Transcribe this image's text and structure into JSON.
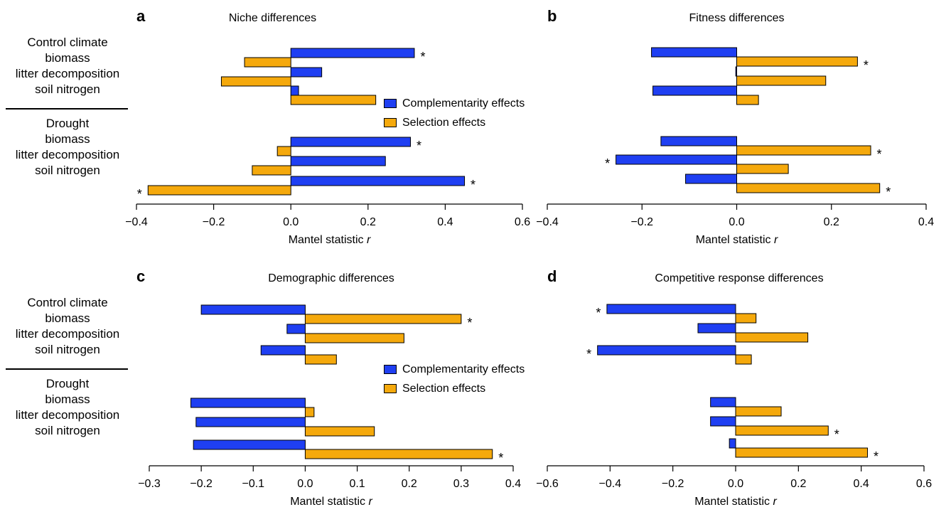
{
  "row_labels": [
    {
      "group": "Control climate",
      "items": [
        "biomass",
        "litter decomposition",
        "soil nitrogen"
      ]
    },
    {
      "group": "Drought",
      "items": [
        "biomass",
        "litter decomposition",
        "soil nitrogen"
      ]
    }
  ],
  "legend": {
    "complementarity": "Complementarity effects",
    "selection": "Selection effects"
  },
  "colors": {
    "complementarity": "#1f3ff2",
    "selection": "#f5a90c"
  },
  "chart_data": [
    {
      "type": "bar",
      "panel": "a",
      "title": "Niche differences",
      "xlabel": "Mantel statistic",
      "xlabel_italic": "r",
      "xlim": [
        -0.4,
        0.6
      ],
      "xticks": [
        "−0.4",
        "−0.2",
        "0.0",
        "0.2",
        "0.4",
        "0.6"
      ],
      "xtick_values": [
        -0.4,
        -0.2,
        0.0,
        0.2,
        0.4,
        0.6
      ],
      "categories": [
        "Control climate biomass",
        "Control climate litter decomposition",
        "Control climate soil nitrogen",
        "Drought biomass",
        "Drought litter decomposition",
        "Drought soil nitrogen"
      ],
      "series": [
        {
          "name": "Complementarity effects",
          "values": [
            0.32,
            0.08,
            0.02,
            0.31,
            0.245,
            0.45
          ],
          "significant": [
            true,
            false,
            false,
            true,
            false,
            true
          ]
        },
        {
          "name": "Selection effects",
          "values": [
            -0.12,
            -0.18,
            0.22,
            -0.035,
            -0.1,
            -0.37
          ],
          "significant": [
            false,
            false,
            false,
            false,
            false,
            true
          ]
        }
      ]
    },
    {
      "type": "bar",
      "panel": "b",
      "title": "Fitness differences",
      "xlabel": "Mantel statistic",
      "xlabel_italic": "r",
      "xlim": [
        -0.4,
        0.4
      ],
      "xticks": [
        "−0.4",
        "−0.2",
        "0.0",
        "0.2",
        "0.4"
      ],
      "xtick_values": [
        -0.4,
        -0.2,
        0.0,
        0.2,
        0.4
      ],
      "categories": [
        "Control climate biomass",
        "Control climate litter decomposition",
        "Control climate soil nitrogen",
        "Drought biomass",
        "Drought litter decomposition",
        "Drought soil nitrogen"
      ],
      "series": [
        {
          "name": "Complementarity effects",
          "values": [
            -0.18,
            -0.002,
            -0.177,
            -0.16,
            -0.255,
            -0.108
          ],
          "significant": [
            false,
            false,
            false,
            false,
            true,
            false
          ]
        },
        {
          "name": "Selection effects",
          "values": [
            0.255,
            0.188,
            0.046,
            0.283,
            0.109,
            0.302
          ],
          "significant": [
            true,
            false,
            false,
            true,
            false,
            true
          ]
        }
      ]
    },
    {
      "type": "bar",
      "panel": "c",
      "title": "Demographic differences",
      "xlabel": "Mantel statistic",
      "xlabel_italic": "r",
      "xlim": [
        -0.3,
        0.4
      ],
      "xticks": [
        "−0.3",
        "−0.2",
        "−0.1",
        "0.0",
        "0.1",
        "0.2",
        "0.3",
        "0.4"
      ],
      "xtick_values": [
        -0.3,
        -0.2,
        -0.1,
        0.0,
        0.1,
        0.2,
        0.3,
        0.4
      ],
      "categories": [
        "Control climate biomass",
        "Control climate litter decomposition",
        "Control climate soil nitrogen",
        "Drought biomass",
        "Drought litter decomposition",
        "Drought soil nitrogen"
      ],
      "series": [
        {
          "name": "Complementarity effects",
          "values": [
            -0.2,
            -0.035,
            -0.085,
            -0.22,
            -0.21,
            -0.215
          ],
          "significant": [
            false,
            false,
            false,
            false,
            false,
            false
          ]
        },
        {
          "name": "Selection effects",
          "values": [
            0.3,
            0.19,
            0.06,
            0.017,
            0.133,
            0.36
          ],
          "significant": [
            true,
            false,
            false,
            false,
            false,
            true
          ]
        }
      ]
    },
    {
      "type": "bar",
      "panel": "d",
      "title": "Competitive response differences",
      "xlabel": "Mantel statistic",
      "xlabel_italic": "r",
      "xlim": [
        -0.6,
        0.6
      ],
      "xticks": [
        "−0.6",
        "−0.4",
        "−0.2",
        "0.0",
        "0.2",
        "0.4",
        "0.6"
      ],
      "xtick_values": [
        -0.6,
        -0.4,
        -0.2,
        0.0,
        0.2,
        0.4,
        0.6
      ],
      "categories": [
        "Control climate biomass",
        "Control climate litter decomposition",
        "Control climate soil nitrogen",
        "Drought biomass",
        "Drought litter decomposition",
        "Drought soil nitrogen"
      ],
      "series": [
        {
          "name": "Complementarity effects",
          "values": [
            -0.41,
            -0.12,
            -0.44,
            -0.08,
            -0.08,
            -0.02
          ],
          "significant": [
            true,
            false,
            true,
            false,
            false,
            false
          ]
        },
        {
          "name": "Selection effects",
          "values": [
            0.065,
            0.23,
            0.05,
            0.145,
            0.295,
            0.42
          ],
          "significant": [
            false,
            false,
            false,
            false,
            true,
            true
          ]
        }
      ]
    }
  ],
  "significance_marker": "*"
}
